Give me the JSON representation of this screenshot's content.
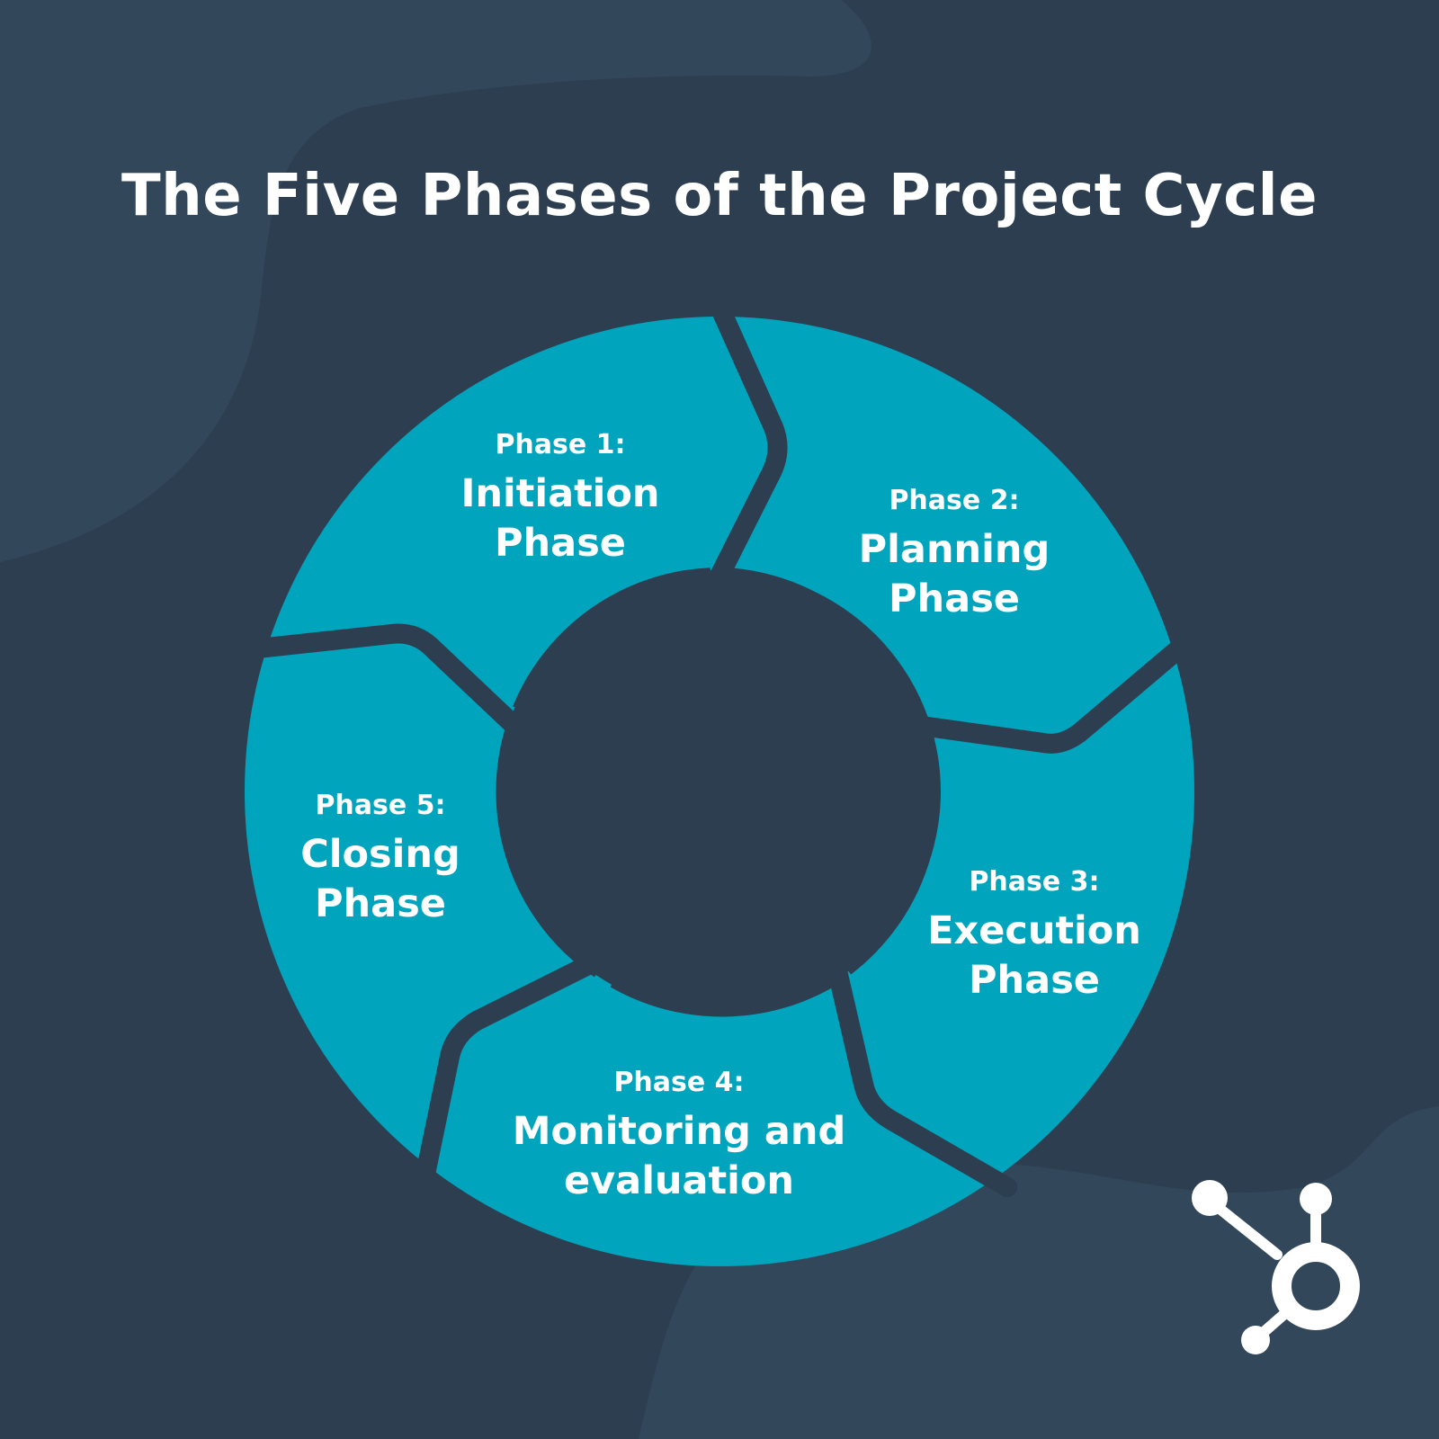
{
  "title": "The Five Phases of the Project Cycle",
  "colors": {
    "background": "#2d3e50",
    "background_accent": "#33475b",
    "segment": "#00a4bd",
    "text": "#ffffff"
  },
  "phases": [
    {
      "number_label": "Phase 1:",
      "name_line1": "Initiation",
      "name_line2": "Phase"
    },
    {
      "number_label": "Phase 2:",
      "name_line1": "Planning",
      "name_line2": "Phase"
    },
    {
      "number_label": "Phase 3:",
      "name_line1": "Execution",
      "name_line2": "Phase"
    },
    {
      "number_label": "Phase 4:",
      "name_line1": "Monitoring and",
      "name_line2": "evaluation"
    },
    {
      "number_label": "Phase 5:",
      "name_line1": "Closing",
      "name_line2": "Phase"
    }
  ],
  "logo": {
    "icon": "hubspot-sprocket-icon"
  }
}
